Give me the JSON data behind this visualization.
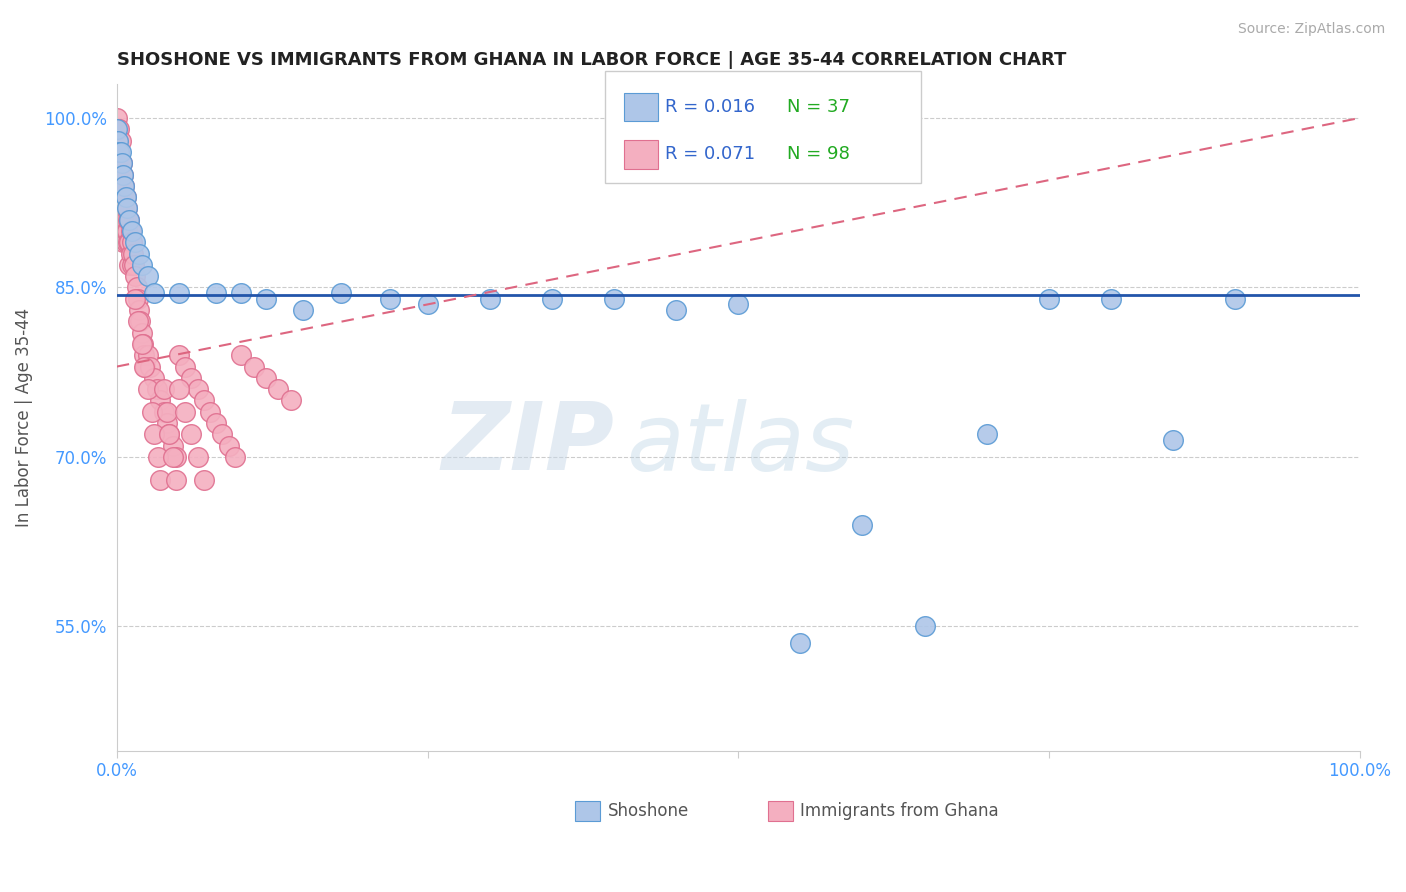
{
  "title": "SHOSHONE VS IMMIGRANTS FROM GHANA IN LABOR FORCE | AGE 35-44 CORRELATION CHART",
  "source_text": "Source: ZipAtlas.com",
  "ylabel": "In Labor Force | Age 35-44",
  "xlim": [
    0.0,
    1.0
  ],
  "ylim": [
    0.44,
    1.03
  ],
  "yticks": [
    0.55,
    0.7,
    0.85,
    1.0
  ],
  "ytick_labels": [
    "55.0%",
    "70.0%",
    "85.0%",
    "100.0%"
  ],
  "legend_r1": "R = 0.016",
  "legend_n1": "N = 37",
  "legend_r2": "R = 0.071",
  "legend_n2": "N = 98",
  "shoshone_color": "#aec6e8",
  "ghana_color": "#f4afc0",
  "shoshone_edge": "#5b9bd5",
  "ghana_edge": "#e07090",
  "trend_blue": "#2255aa",
  "trend_pink": "#dd6680",
  "watermark_zip": "ZIP",
  "watermark_atlas": "atlas",
  "background_color": "#ffffff",
  "shoshone_x": [
    0.0,
    0.001,
    0.002,
    0.003,
    0.004,
    0.005,
    0.006,
    0.007,
    0.008,
    0.01,
    0.012,
    0.015,
    0.018,
    0.02,
    0.025,
    0.03,
    0.05,
    0.08,
    0.1,
    0.12,
    0.15,
    0.18,
    0.22,
    0.25,
    0.3,
    0.35,
    0.4,
    0.45,
    0.5,
    0.55,
    0.6,
    0.65,
    0.7,
    0.75,
    0.8,
    0.85,
    0.9
  ],
  "shoshone_y": [
    0.99,
    0.98,
    0.97,
    0.97,
    0.96,
    0.95,
    0.94,
    0.93,
    0.92,
    0.91,
    0.9,
    0.89,
    0.88,
    0.87,
    0.86,
    0.845,
    0.845,
    0.845,
    0.845,
    0.84,
    0.83,
    0.845,
    0.84,
    0.835,
    0.84,
    0.84,
    0.84,
    0.83,
    0.835,
    0.535,
    0.64,
    0.55,
    0.72,
    0.84,
    0.84,
    0.715,
    0.84
  ],
  "ghana_x": [
    0.0,
    0.0,
    0.0,
    0.001,
    0.001,
    0.001,
    0.001,
    0.001,
    0.002,
    0.002,
    0.002,
    0.002,
    0.002,
    0.003,
    0.003,
    0.003,
    0.003,
    0.003,
    0.004,
    0.004,
    0.004,
    0.004,
    0.005,
    0.005,
    0.005,
    0.005,
    0.006,
    0.006,
    0.006,
    0.007,
    0.007,
    0.007,
    0.008,
    0.008,
    0.009,
    0.009,
    0.01,
    0.01,
    0.01,
    0.011,
    0.011,
    0.012,
    0.012,
    0.013,
    0.014,
    0.015,
    0.016,
    0.017,
    0.018,
    0.019,
    0.02,
    0.021,
    0.022,
    0.023,
    0.025,
    0.027,
    0.03,
    0.032,
    0.035,
    0.038,
    0.04,
    0.042,
    0.045,
    0.048,
    0.05,
    0.055,
    0.06,
    0.065,
    0.07,
    0.075,
    0.08,
    0.085,
    0.09,
    0.095,
    0.1,
    0.11,
    0.12,
    0.13,
    0.14,
    0.015,
    0.017,
    0.02,
    0.022,
    0.025,
    0.028,
    0.03,
    0.033,
    0.035,
    0.038,
    0.04,
    0.042,
    0.045,
    0.048,
    0.05,
    0.055,
    0.06,
    0.065,
    0.07
  ],
  "ghana_y": [
    1.0,
    0.99,
    0.97,
    0.99,
    0.97,
    0.96,
    0.94,
    0.92,
    0.99,
    0.97,
    0.95,
    0.93,
    0.91,
    0.98,
    0.96,
    0.94,
    0.92,
    0.9,
    0.96,
    0.94,
    0.92,
    0.9,
    0.95,
    0.93,
    0.91,
    0.89,
    0.94,
    0.92,
    0.9,
    0.93,
    0.91,
    0.89,
    0.92,
    0.9,
    0.91,
    0.89,
    0.91,
    0.89,
    0.87,
    0.9,
    0.88,
    0.89,
    0.87,
    0.88,
    0.87,
    0.86,
    0.85,
    0.84,
    0.83,
    0.82,
    0.81,
    0.8,
    0.79,
    0.78,
    0.79,
    0.78,
    0.77,
    0.76,
    0.75,
    0.74,
    0.73,
    0.72,
    0.71,
    0.7,
    0.79,
    0.78,
    0.77,
    0.76,
    0.75,
    0.74,
    0.73,
    0.72,
    0.71,
    0.7,
    0.79,
    0.78,
    0.77,
    0.76,
    0.75,
    0.84,
    0.82,
    0.8,
    0.78,
    0.76,
    0.74,
    0.72,
    0.7,
    0.68,
    0.76,
    0.74,
    0.72,
    0.7,
    0.68,
    0.76,
    0.74,
    0.72,
    0.7,
    0.68
  ],
  "blue_trend_x0": 0.0,
  "blue_trend_x1": 1.0,
  "blue_trend_y0": 0.843,
  "blue_trend_y1": 0.843,
  "pink_trend_x0": 0.0,
  "pink_trend_x1": 1.0,
  "pink_trend_y0": 0.78,
  "pink_trend_y1": 1.0
}
